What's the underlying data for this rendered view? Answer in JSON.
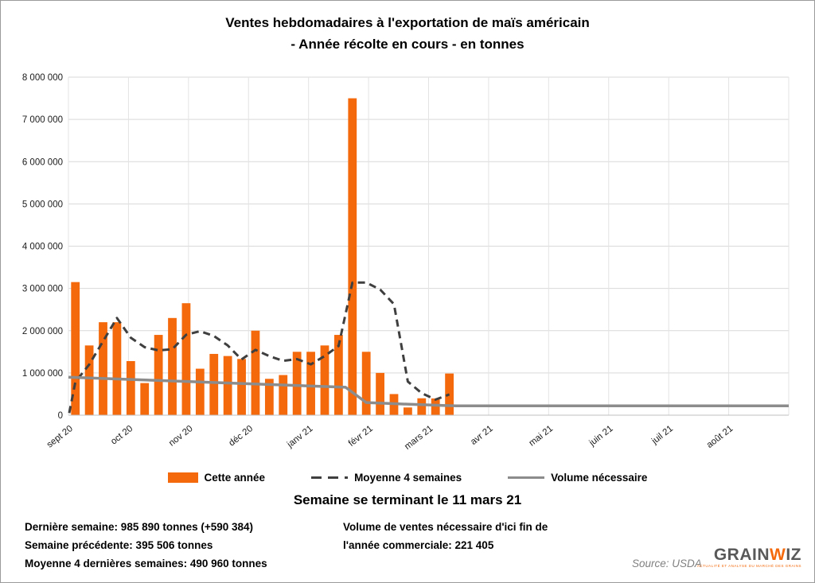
{
  "title": {
    "line1": "Ventes hebdomadaires à l'exportation de maïs américain",
    "line2": "- Année récolte en cours - en tonnes"
  },
  "subtitle": "Semaine se terminant le 11 mars 21",
  "legend": {
    "this_year": "Cette année",
    "avg4": "Moyenne 4 semaines",
    "volume": "Volume nécessaire"
  },
  "stats": {
    "last_week": "Dernière semaine: 985 890 tonnes (+590 384)",
    "previous_week": "Semaine précédente: 395 506 tonnes",
    "avg_4_weeks": "Moyenne 4 dernières semaines: 490 960 tonnes",
    "volume_line1": "Volume de ventes nécessaire d'ici fin de",
    "volume_line2": "l'année commerciale: 221 405"
  },
  "source": "Source: USDA",
  "logo": {
    "left": "GRAIN",
    "mid": "W",
    "right": "IZ",
    "tagline": "ACTUALITÉ ET ANALYSE DU MARCHÉ DES GRAINS"
  },
  "chart_data": {
    "type": "bar",
    "title": "Ventes hebdomadaires à l'exportation de maïs américain - Année récolte en cours - en tonnes",
    "unit": "tonnes",
    "grid": true,
    "legend_position": "bottom",
    "x_axis": {
      "categories": [
        "sept 20",
        "oct 20",
        "nov 20",
        "déc 20",
        "janv 21",
        "févr 21",
        "mars 21",
        "avr 21",
        "mai 21",
        "juin 21",
        "juil 21",
        "août 21"
      ],
      "weeks_total": 52
    },
    "y_axis": {
      "min": 0,
      "max": 8000000,
      "tick_step": 1000000,
      "tick_labels": [
        "0",
        "1 000 000",
        "2 000 000",
        "3 000 000",
        "4 000 000",
        "5 000 000",
        "6 000 000",
        "7 000 000",
        "8 000 000"
      ]
    },
    "series": [
      {
        "name": "Cette année",
        "type": "bar",
        "color": "#F4690B",
        "weekly_values": [
          3150000,
          1650000,
          2200000,
          2200000,
          1280000,
          760000,
          1900000,
          2300000,
          2650000,
          1100000,
          1450000,
          1400000,
          1330000,
          2000000,
          860000,
          950000,
          1500000,
          1500000,
          1650000,
          1900000,
          7500000,
          1500000,
          1000000,
          500000,
          182444,
          400000,
          395506,
          985890
        ]
      },
      {
        "name": "Moyenne 4 semaines",
        "type": "line",
        "style": "dashed",
        "color": "#3F3F3F",
        "derived": "rolling 4-week average of Cette année",
        "final_value": 490960
      },
      {
        "name": "Volume nécessaire",
        "type": "line",
        "style": "solid",
        "color": "#8C8C8C",
        "final_value": 221405,
        "points_week_value": [
          [
            0,
            900000
          ],
          [
            20,
            660000
          ],
          [
            21.5,
            300000
          ],
          [
            24,
            265000
          ],
          [
            27,
            230000
          ],
          [
            28,
            221405
          ],
          [
            52,
            221405
          ]
        ]
      }
    ]
  }
}
